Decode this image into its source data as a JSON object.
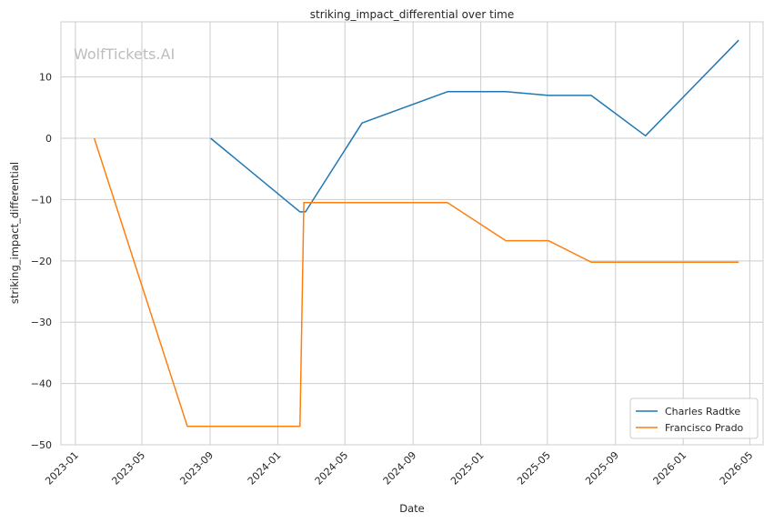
{
  "chart_data": {
    "type": "line",
    "title": "striking_impact_differential over time",
    "xlabel": "Date",
    "ylabel": "striking_impact_differential",
    "watermark": "WolfTickets.AI",
    "x_ticks": [
      "2023-01",
      "2023-05",
      "2023-09",
      "2024-01",
      "2024-05",
      "2024-09",
      "2025-01",
      "2025-05",
      "2025-09",
      "2026-01",
      "2026-05"
    ],
    "y_ticks": [
      -50,
      -40,
      -30,
      -20,
      -10,
      0,
      10
    ],
    "xlim": [
      "2022-12-06",
      "2026-05-25"
    ],
    "ylim": [
      -50,
      19
    ],
    "grid": true,
    "legend_position": "lower-right",
    "series": [
      {
        "name": "Charles Radtke",
        "color": "#1f77b4",
        "points": [
          {
            "x": "2023-09-02",
            "y": 0
          },
          {
            "x": "2024-02-10",
            "y": -12
          },
          {
            "x": "2024-02-20",
            "y": -12
          },
          {
            "x": "2024-06-01",
            "y": 2.5
          },
          {
            "x": "2024-11-02",
            "y": 7.6
          },
          {
            "x": "2025-02-15",
            "y": 7.6
          },
          {
            "x": "2025-05-03",
            "y": 7
          },
          {
            "x": "2025-07-19",
            "y": 7
          },
          {
            "x": "2025-10-25",
            "y": 0.4
          },
          {
            "x": "2026-04-11",
            "y": 16
          }
        ]
      },
      {
        "name": "Francisco Prado",
        "color": "#ff7f0e",
        "points": [
          {
            "x": "2023-02-04",
            "y": 0
          },
          {
            "x": "2023-07-22",
            "y": -47
          },
          {
            "x": "2024-02-10",
            "y": -47
          },
          {
            "x": "2024-02-17",
            "y": -10.5
          },
          {
            "x": "2024-11-02",
            "y": -10.5
          },
          {
            "x": "2025-02-15",
            "y": -16.7
          },
          {
            "x": "2025-05-03",
            "y": -16.7
          },
          {
            "x": "2025-07-19",
            "y": -20.2
          },
          {
            "x": "2026-04-11",
            "y": -20.2
          }
        ]
      }
    ]
  }
}
